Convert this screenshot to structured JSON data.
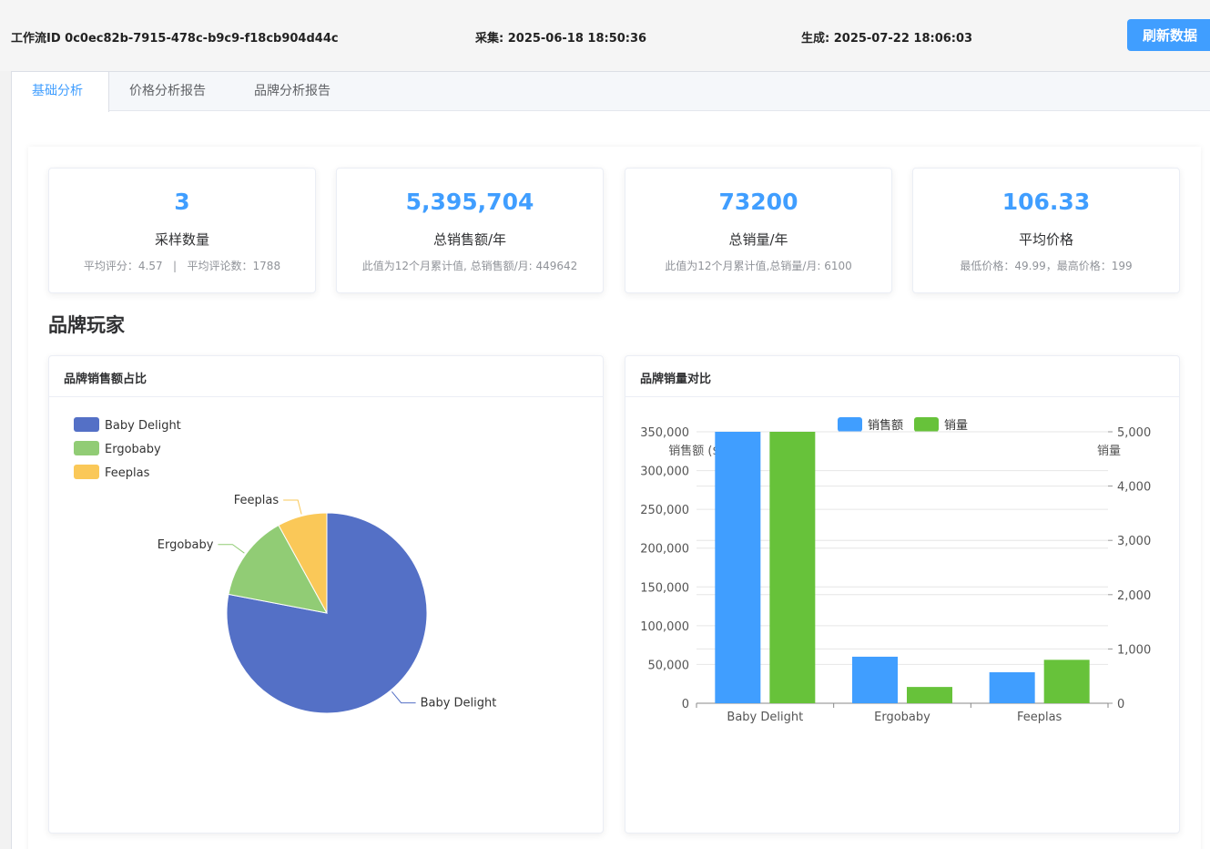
{
  "header": {
    "workflow": "工作流ID 0c0ec82b-7915-478c-b9c9-f18cb904d44c",
    "collected": "采集: 2025-06-18 18:50:36",
    "generated": "生成: 2025-07-22 18:06:03",
    "refresh_label": "刷新数据"
  },
  "tabs": [
    {
      "label": "基础分析",
      "active": true
    },
    {
      "label": "价格分析报告",
      "active": false
    },
    {
      "label": "品牌分析报告",
      "active": false
    }
  ],
  "stats": [
    {
      "value": "3",
      "label": "采样数量",
      "sub": "平均评分：4.57   |   平均评论数：1788"
    },
    {
      "value": "5,395,704",
      "label": "总销售额/年",
      "sub": "此值为12个月累计值, 总销售额/月: 449642"
    },
    {
      "value": "73200",
      "label": "总销量/年",
      "sub": "此值为12个月累计值,总销量/月: 6100"
    },
    {
      "value": "106.33",
      "label": "平均价格",
      "sub": "最低价格：49.99，最高价格：199"
    }
  ],
  "section_title": "品牌玩家",
  "colors": {
    "accent": "#409eff",
    "green": "#67c23a",
    "pie": [
      "#5470c6",
      "#91cc75",
      "#fac858"
    ]
  },
  "chart_data": [
    {
      "type": "pie",
      "title": "品牌销售额占比",
      "legend_position": "top-left",
      "categories": [
        "Baby Delight",
        "Ergobaby",
        "Feeplas"
      ],
      "values": [
        78,
        14,
        8
      ]
    },
    {
      "type": "bar",
      "title": "品牌销量对比",
      "legend_position": "top",
      "categories": [
        "Baby Delight",
        "Ergobaby",
        "Feeplas"
      ],
      "series": [
        {
          "name": "销售额",
          "axis": "left",
          "values": [
            350000,
            60000,
            40000
          ]
        },
        {
          "name": "销量",
          "axis": "right",
          "values": [
            5000,
            300,
            800
          ]
        }
      ],
      "ylabel": "销售额 ($)",
      "ylabel_right": "销量",
      "ylim": [
        0,
        350000
      ],
      "ylim_right": [
        0,
        5000
      ],
      "yticks": [
        "0",
        "50,000",
        "100,000",
        "150,000",
        "200,000",
        "250,000",
        "300,000",
        "350,000"
      ],
      "yticks_right": [
        "0",
        "1,000",
        "2,000",
        "3,000",
        "4,000",
        "5,000"
      ],
      "grid": true
    }
  ]
}
